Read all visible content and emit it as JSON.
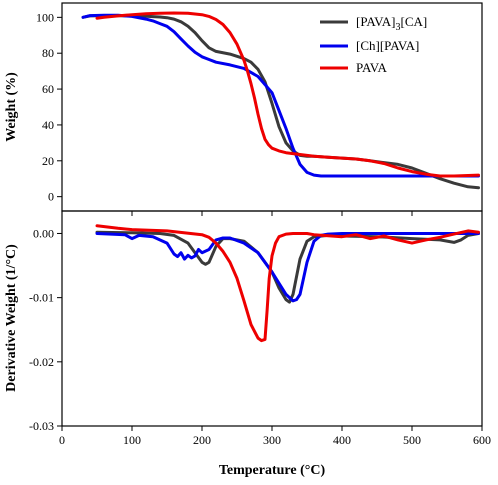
{
  "chart_data": [
    {
      "type": "line",
      "panel": "top",
      "ylabel": "Weight (%)",
      "xlim": [
        0,
        600
      ],
      "ylim": [
        -8,
        108
      ],
      "yticks": [
        0,
        20,
        40,
        60,
        80,
        100
      ],
      "grid": false,
      "legend_position": "top-right",
      "legend_entries": [
        {
          "base": "[PAVA]",
          "sub": "3",
          "tail": "[CA]",
          "color": "#3a3a3a"
        },
        {
          "base": "[Ch][PAVA]",
          "sub": "",
          "tail": "",
          "color": "#0000ee"
        },
        {
          "base": "PAVA",
          "sub": "",
          "tail": "",
          "color": "#ee0000"
        }
      ],
      "series": [
        {
          "name": "[PAVA]3[CA]",
          "color": "#3a3a3a",
          "x": [
            30,
            40,
            60,
            80,
            100,
            120,
            140,
            150,
            160,
            170,
            180,
            190,
            200,
            210,
            220,
            240,
            260,
            270,
            280,
            290,
            300,
            310,
            320,
            330,
            340,
            350,
            360,
            380,
            400,
            420,
            440,
            460,
            480,
            500,
            520,
            540,
            560,
            580,
            595
          ],
          "y": [
            100,
            100.8,
            101,
            101,
            100.8,
            100.6,
            100.2,
            99.8,
            99,
            97.5,
            95,
            91.5,
            87,
            83,
            81,
            79.5,
            77,
            75,
            71,
            64,
            52,
            39,
            30,
            25.5,
            23,
            22.5,
            22.5,
            22,
            21.5,
            21,
            20,
            19,
            18,
            16,
            13,
            10,
            7.5,
            5.5,
            5
          ]
        },
        {
          "name": "[Ch][PAVA]",
          "color": "#0000ee",
          "x": [
            30,
            40,
            60,
            80,
            100,
            120,
            130,
            140,
            150,
            160,
            170,
            180,
            190,
            200,
            210,
            220,
            240,
            260,
            280,
            300,
            310,
            320,
            330,
            340,
            350,
            360,
            370,
            380,
            400,
            450,
            500,
            550,
            595
          ],
          "y": [
            100,
            101,
            101.2,
            101.2,
            100.5,
            99,
            98,
            96.5,
            95,
            92,
            88,
            84,
            80.5,
            78,
            76.5,
            75,
            73.5,
            71.5,
            67,
            58,
            48,
            38,
            27,
            18,
            13.5,
            12,
            11.5,
            11.5,
            11.5,
            11.5,
            11.5,
            11.5,
            11.5
          ]
        },
        {
          "name": "PAVA",
          "color": "#ee0000",
          "x": [
            50,
            60,
            80,
            100,
            120,
            140,
            160,
            180,
            200,
            210,
            220,
            230,
            240,
            250,
            260,
            265,
            270,
            275,
            280,
            285,
            290,
            295,
            300,
            310,
            320,
            330,
            340,
            360,
            380,
            400,
            420,
            440,
            460,
            480,
            500,
            520,
            540,
            560,
            580,
            595
          ],
          "y": [
            99.5,
            100,
            100.8,
            101.5,
            102,
            102.3,
            102.4,
            102.3,
            101.5,
            100.5,
            98.8,
            96,
            91.5,
            85,
            76,
            70,
            63,
            55,
            46,
            38,
            32,
            29,
            27,
            25.5,
            24.5,
            24,
            23.5,
            22.5,
            22,
            21.5,
            21,
            20,
            18.5,
            16,
            14,
            12.5,
            11.5,
            11.5,
            11.8,
            12
          ]
        }
      ]
    },
    {
      "type": "line",
      "panel": "bottom",
      "xlabel": "Temperature (°C)",
      "ylabel": "Derivative Weight (1/°C)",
      "xlim": [
        0,
        600
      ],
      "ylim": [
        -0.03,
        0.0035
      ],
      "xticks": [
        0,
        100,
        200,
        300,
        400,
        500,
        600
      ],
      "yticks": [
        0.0,
        -0.01,
        -0.02,
        -0.03
      ],
      "ytick_labels": [
        "0.00",
        "-0.01",
        "-0.02",
        "-0.03"
      ],
      "grid": false,
      "series": [
        {
          "name": "[PAVA]3[CA]",
          "color": "#3a3a3a",
          "x": [
            50,
            100,
            140,
            160,
            180,
            190,
            200,
            205,
            210,
            220,
            230,
            240,
            260,
            280,
            300,
            310,
            320,
            325,
            330,
            340,
            350,
            360,
            380,
            400,
            450,
            500,
            540,
            560,
            570,
            580,
            595
          ],
          "y": [
            0.0002,
            0.0001,
            0,
            -0.0003,
            -0.0015,
            -0.003,
            -0.0045,
            -0.0048,
            -0.0045,
            -0.002,
            -0.0008,
            -0.0008,
            -0.0012,
            -0.003,
            -0.006,
            -0.0085,
            -0.0103,
            -0.0107,
            -0.0095,
            -0.004,
            -0.0012,
            -0.0005,
            -0.0003,
            -0.0004,
            -0.0005,
            -0.0008,
            -0.001,
            -0.0014,
            -0.001,
            -0.0003,
            0
          ]
        },
        {
          "name": "[Ch][PAVA]",
          "color": "#0000ee",
          "x": [
            50,
            90,
            100,
            110,
            130,
            150,
            160,
            165,
            170,
            175,
            180,
            185,
            190,
            195,
            200,
            210,
            220,
            230,
            240,
            260,
            280,
            300,
            320,
            330,
            335,
            340,
            345,
            350,
            360,
            370,
            380,
            400,
            450,
            500,
            550,
            595
          ],
          "y": [
            0,
            -0.0002,
            -0.0008,
            -0.0003,
            -0.0005,
            -0.0015,
            -0.0032,
            -0.0036,
            -0.003,
            -0.004,
            -0.0034,
            -0.0038,
            -0.0035,
            -0.0025,
            -0.003,
            -0.0025,
            -0.001,
            -0.0007,
            -0.0007,
            -0.0015,
            -0.003,
            -0.006,
            -0.0095,
            -0.0105,
            -0.0103,
            -0.0095,
            -0.007,
            -0.0045,
            -0.0012,
            -0.0003,
            -0.0001,
            0,
            0,
            0,
            0,
            0
          ]
        },
        {
          "name": "PAVA",
          "color": "#ee0000",
          "x": [
            50,
            80,
            100,
            150,
            200,
            210,
            220,
            230,
            240,
            250,
            260,
            270,
            280,
            285,
            290,
            293,
            296,
            300,
            305,
            310,
            320,
            330,
            340,
            350,
            360,
            400,
            420,
            440,
            460,
            480,
            500,
            520,
            540,
            560,
            580,
            595
          ],
          "y": [
            0.0012,
            0.0008,
            0.0006,
            0.0004,
            -0.0002,
            -0.0006,
            -0.0015,
            -0.0028,
            -0.0045,
            -0.007,
            -0.0105,
            -0.0142,
            -0.0163,
            -0.0167,
            -0.0165,
            -0.012,
            -0.007,
            -0.0035,
            -0.0015,
            -0.0005,
            -0.0001,
            0,
            0,
            0,
            -0.0002,
            -0.0005,
            -0.0002,
            -0.0008,
            -0.0004,
            -0.001,
            -0.0015,
            -0.001,
            -0.0006,
            -0.0001,
            0.0004,
            0.0002
          ]
        }
      ]
    }
  ]
}
